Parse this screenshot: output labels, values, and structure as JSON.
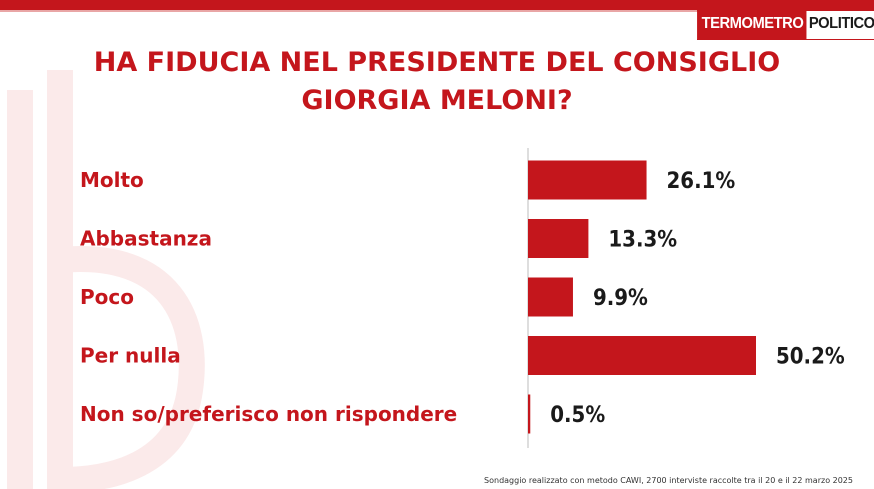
{
  "brand": {
    "part1": "TERMOMETRO",
    "part2": "POLITICO"
  },
  "title": {
    "line1": "HA FIDUCIA NEL PRESIDENTE DEL CONSIGLIO",
    "line2": "GIORGIA MELONI?"
  },
  "colors": {
    "accent": "#c4161c",
    "text": "#1a1a1a"
  },
  "chart_data": {
    "type": "bar",
    "orientation": "horizontal",
    "title": "HA FIDUCIA NEL PRESIDENTE DEL CONSIGLIO GIORGIA MELONI?",
    "categories": [
      "Molto",
      "Abbastanza",
      "Poco",
      "Per nulla",
      "Non so/preferisco non rispondere"
    ],
    "values": [
      26.1,
      13.3,
      9.9,
      50.2,
      0.5
    ],
    "value_labels": [
      "26.1%",
      "13.3%",
      "9.9%",
      "50.2%",
      "0.5%"
    ],
    "unit": "%",
    "xlim": [
      0,
      50.2
    ],
    "grid": false,
    "legend": "none"
  },
  "footnote": "Sondaggio realizzato con metodo CAWI, 2700 interviste raccolte tra il 20 e il 22 marzo 2025"
}
